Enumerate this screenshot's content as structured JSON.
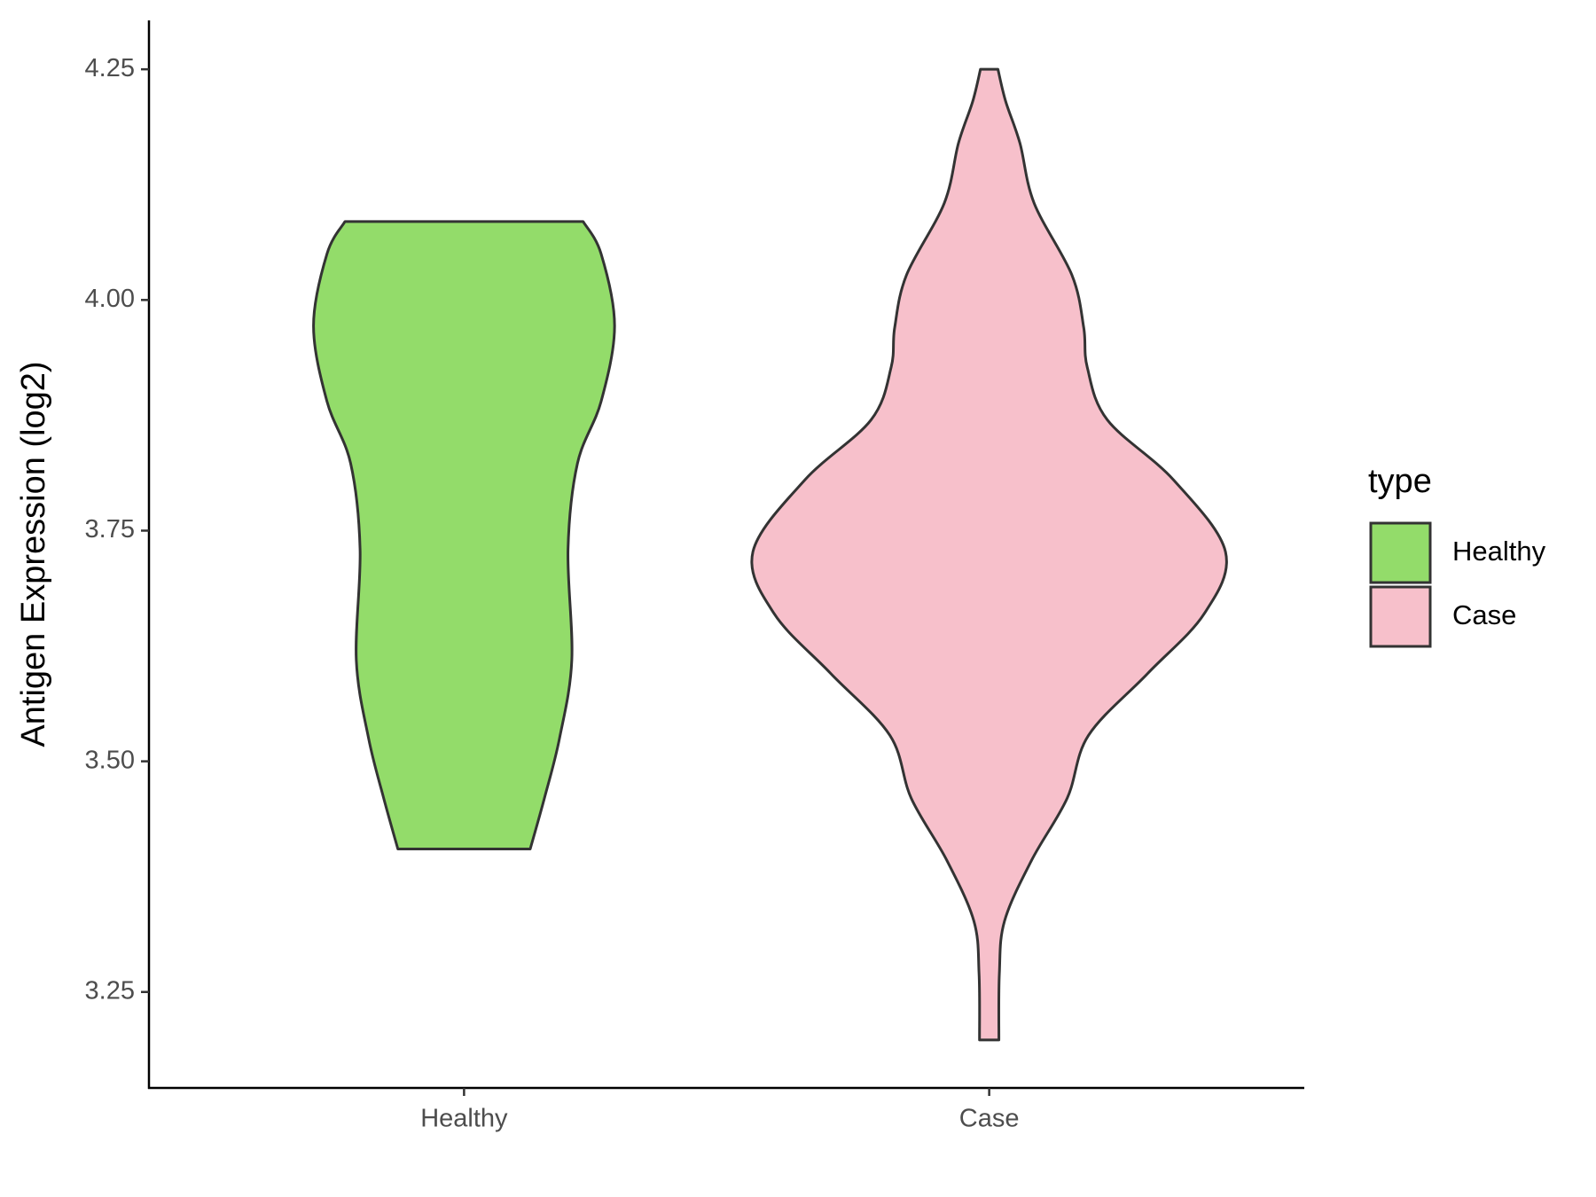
{
  "chart_data": {
    "type": "violin",
    "y_label": "Antigen Expression (log2)",
    "legend_title": "type",
    "categories": [
      "Healthy",
      "Case"
    ],
    "ylim": [
      3.146,
      4.303
    ],
    "yticks": [
      3.25,
      {
        "value": 3.5,
        "label": "3.50"
      },
      3.75,
      {
        "value": 4,
        "label": "4.00"
      },
      4.25
    ],
    "series": [
      {
        "name": "Healthy",
        "color": "#93dc6a",
        "y": [
          4.085,
          4.05,
          3.972,
          3.89,
          3.823,
          3.73,
          3.61,
          3.525,
          3.46,
          3.405
        ],
        "density": [
          0.504,
          0.58,
          0.637,
          0.58,
          0.48,
          0.44,
          0.456,
          0.404,
          0.34,
          0.28
        ]
      },
      {
        "name": "Case",
        "color": "#f7c0cb",
        "y": [
          4.25,
          4.215,
          4.17,
          4.105,
          4.027,
          3.97,
          3.927,
          3.87,
          3.805,
          3.727,
          3.66,
          3.595,
          3.528,
          3.46,
          3.393,
          3.327,
          3.27,
          3.198
        ],
        "density": [
          0.037,
          0.07,
          0.13,
          0.19,
          0.35,
          0.4,
          0.415,
          0.5,
          0.78,
          1.0,
          0.91,
          0.67,
          0.42,
          0.33,
          0.18,
          0.065,
          0.043,
          0.041
        ]
      }
    ]
  }
}
